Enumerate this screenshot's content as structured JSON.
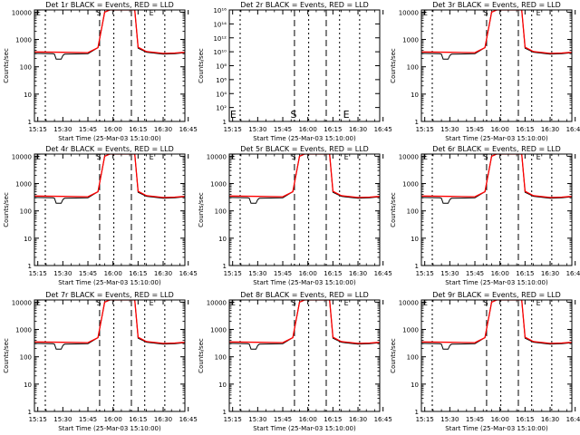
{
  "xticks": [
    "15:15",
    "15:30",
    "15:45",
    "16:00",
    "16:15",
    "16:30",
    "16:45"
  ],
  "yticks": [
    "1",
    "10",
    "100",
    "1000",
    "10000"
  ],
  "ylabel": "Counts/sec",
  "xlabel": "Start Time (25-Mar-03 15:10:00)",
  "colors": {
    "events": "#000000",
    "lld": "#ff0000",
    "axes": "#000000"
  },
  "chart_data": [
    {
      "type": "line",
      "title": "Det 1r BLACK = Events, RED = LLD",
      "scale": "log",
      "ylim": [
        1,
        12000
      ],
      "markers": [
        "S",
        "E"
      ],
      "series": [
        {
          "name": "Events",
          "kind": "events"
        },
        {
          "name": "LLD",
          "kind": "lld"
        }
      ]
    },
    {
      "type": "line",
      "title": "Det 2r BLACK = Events, RED = LLD",
      "scale": "log",
      "ylim": [
        1,
        10000000000000000
      ],
      "yticks": [
        "1",
        "10²",
        "10⁴",
        "10⁶",
        "10⁸",
        "10¹⁰",
        "10¹²",
        "10¹⁴",
        "10¹⁶"
      ],
      "markers": [
        "S",
        "E"
      ],
      "series": []
    },
    {
      "type": "line",
      "title": "Det 3r BLACK = Events, RED = LLD",
      "scale": "log",
      "ylim": [
        1,
        12000
      ],
      "markers": [
        "S",
        "E"
      ],
      "series": [
        {
          "name": "Events",
          "kind": "events"
        },
        {
          "name": "LLD",
          "kind": "lld"
        }
      ]
    },
    {
      "type": "line",
      "title": "Det 4r BLACK = Events, RED = LLD",
      "scale": "log",
      "ylim": [
        1,
        12000
      ],
      "markers": [
        "S",
        "E"
      ],
      "series": [
        {
          "name": "Events",
          "kind": "events"
        },
        {
          "name": "LLD",
          "kind": "lld"
        }
      ]
    },
    {
      "type": "line",
      "title": "Det 5r BLACK = Events, RED = LLD",
      "scale": "log",
      "ylim": [
        1,
        12000
      ],
      "markers": [
        "S",
        "E"
      ],
      "series": [
        {
          "name": "Events",
          "kind": "events"
        },
        {
          "name": "LLD",
          "kind": "lld"
        }
      ]
    },
    {
      "type": "line",
      "title": "Det 6r BLACK = Events, RED = LLD",
      "scale": "log",
      "ylim": [
        1,
        12000
      ],
      "markers": [
        "S",
        "E"
      ],
      "series": [
        {
          "name": "Events",
          "kind": "events"
        },
        {
          "name": "LLD",
          "kind": "lld"
        }
      ]
    },
    {
      "type": "line",
      "title": "Det 7r BLACK = Events, RED = LLD",
      "scale": "log",
      "ylim": [
        1,
        12000
      ],
      "markers": [
        "S",
        "E"
      ],
      "series": [
        {
          "name": "Events",
          "kind": "events"
        },
        {
          "name": "LLD",
          "kind": "lld"
        }
      ]
    },
    {
      "type": "line",
      "title": "Det 8r BLACK = Events, RED = LLD",
      "scale": "log",
      "ylim": [
        1,
        12000
      ],
      "markers": [
        "S",
        "E"
      ],
      "series": [
        {
          "name": "Events",
          "kind": "events"
        },
        {
          "name": "LLD",
          "kind": "lld"
        }
      ]
    },
    {
      "type": "line",
      "title": "Det 9r BLACK = Events, RED = LLD",
      "scale": "log",
      "ylim": [
        1,
        12000
      ],
      "markers": [
        "S",
        "E"
      ],
      "series": [
        {
          "name": "Events",
          "kind": "events"
        },
        {
          "name": "LLD",
          "kind": "lld"
        }
      ]
    }
  ],
  "events_curve": {
    "x": [
      "15:13",
      "15:24",
      "15:25",
      "15:26",
      "15:29",
      "15:30",
      "15:31",
      "15:45",
      "15:51",
      "15:55",
      "15:58",
      "16:13",
      "16:15",
      "16:20",
      "16:30",
      "16:37",
      "16:43"
    ],
    "y": [
      310,
      300,
      290,
      190,
      190,
      260,
      290,
      300,
      500,
      10000,
      12000,
      12000,
      480,
      340,
      290,
      300,
      330
    ]
  },
  "lld_curve": {
    "x": [
      "15:13",
      "15:30",
      "15:45",
      "15:51",
      "15:55",
      "15:58",
      "16:13",
      "16:15",
      "16:20",
      "16:30",
      "16:37",
      "16:43"
    ],
    "y": [
      350,
      340,
      330,
      500,
      10000,
      12000,
      12000,
      520,
      360,
      310,
      320,
      340
    ]
  }
}
